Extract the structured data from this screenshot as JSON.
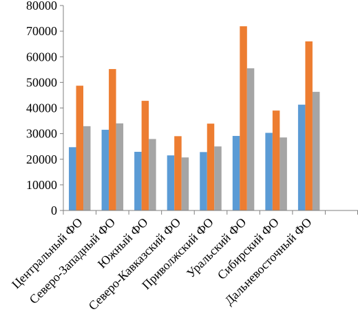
{
  "chart_data": {
    "type": "bar",
    "categories": [
      "Центральный ФО",
      "Северо-Западный ФО",
      "Южный ФО",
      "Северо-Кавказский ФО",
      "Приволжский ФО",
      "Уральский ФО",
      "Сибирский ФО",
      "Дальневосточный ФО",
      ""
    ],
    "series": [
      {
        "color": "#5b9bd5",
        "values": [
          24700,
          31500,
          22900,
          21500,
          22800,
          29100,
          30300,
          41300,
          null
        ]
      },
      {
        "color": "#ed7d31",
        "values": [
          48700,
          55200,
          42800,
          29000,
          33900,
          71900,
          39000,
          66000,
          null
        ]
      },
      {
        "color": "#a5a5a5",
        "values": [
          32900,
          34000,
          27900,
          20700,
          25000,
          55500,
          28500,
          46300,
          null
        ]
      }
    ],
    "ylim": [
      0,
      80000
    ],
    "yticks": [
      "0",
      "10000",
      "20000",
      "30000",
      "40000",
      "50000",
      "60000",
      "70000",
      "80000"
    ],
    "grid": false,
    "legend": "none"
  }
}
